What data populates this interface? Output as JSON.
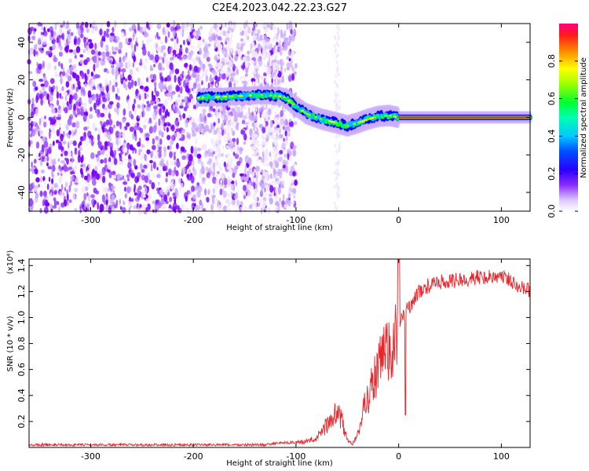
{
  "title": "C2E4.2023.042.22.23.G27",
  "colors": {
    "snr_line": "#e8262b",
    "colormap": [
      "#ffffff",
      "#f2e6ff",
      "#c9a9ff",
      "#9b4dff",
      "#7a00ff",
      "#3a00ff",
      "#0000ff",
      "#0060ff",
      "#00bfff",
      "#00ffd0",
      "#00ff40",
      "#90ff00",
      "#ffff00",
      "#ff9000",
      "#ff2020",
      "#ff0080"
    ]
  },
  "chart_data": [
    {
      "type": "heatmap",
      "name": "spectrogram",
      "xlabel": "Height of straight line (km)",
      "ylabel": "Frequency (Hz)",
      "xlim": [
        -360,
        128
      ],
      "ylim": [
        -50,
        50
      ],
      "x_ticks": [
        -300,
        -200,
        -100,
        0,
        100
      ],
      "x_tick_labels": [
        "-300",
        "-200",
        "-100",
        "0",
        "100"
      ],
      "y_ticks": [
        -40,
        -20,
        0,
        20,
        40
      ],
      "y_tick_labels": [
        "-40",
        "-20",
        "0",
        "20",
        "40"
      ],
      "ridge": {
        "height_km": [
          -195,
          -170,
          -150,
          -130,
          -112,
          -100,
          -90,
          -75,
          -60,
          -50,
          -40,
          -30,
          -20,
          -10,
          0,
          50,
          128
        ],
        "frequency_hz": [
          10.5,
          11,
          11.5,
          12,
          11,
          6,
          2,
          -1,
          -3,
          -4.5,
          -3,
          -1,
          0.5,
          1,
          0,
          0,
          0
        ]
      },
      "noise_region_km": [
        -360,
        -112
      ],
      "colorbar": {
        "label": "Normalized spectral amplitude",
        "range": [
          0,
          1
        ],
        "ticks": [
          0,
          0.2,
          0.4,
          0.6,
          0.8
        ],
        "tick_labels": [
          "0.0",
          "0.2",
          "0.4",
          "0.6",
          "0.8"
        ]
      }
    },
    {
      "type": "line",
      "name": "snr",
      "xlabel": "Height of straight line (km)",
      "ylabel": "SNR (10 * v/v)",
      "y_scale_note": "(x10⁴)",
      "xlim": [
        -360,
        128
      ],
      "ylim": [
        0,
        1.45
      ],
      "x_ticks": [
        -300,
        -200,
        -100,
        0,
        100
      ],
      "x_tick_labels": [
        "-300",
        "-200",
        "-100",
        "0",
        "100"
      ],
      "y_ticks": [
        0.2,
        0.4,
        0.6,
        0.8,
        1.0,
        1.2,
        1.4
      ],
      "y_tick_labels": [
        "0.2",
        "0.4",
        "0.6",
        "0.8",
        "1.0",
        "1.2",
        "1.4"
      ],
      "envelope": {
        "height_km": [
          -360,
          -130,
          -110,
          -90,
          -80,
          -72,
          -65,
          -60,
          -55,
          -50,
          -45,
          -40,
          -35,
          -30,
          -25,
          -20,
          -15,
          -10,
          -5,
          0,
          5,
          10,
          20,
          30,
          40,
          60,
          80,
          100,
          115,
          128
        ],
        "snr": [
          0.02,
          0.02,
          0.04,
          0.05,
          0.08,
          0.17,
          0.24,
          0.3,
          0.22,
          0.06,
          0.03,
          0.1,
          0.3,
          0.45,
          0.55,
          0.65,
          0.78,
          0.82,
          0.9,
          0.95,
          1.02,
          1.08,
          1.2,
          1.25,
          1.27,
          1.29,
          1.31,
          1.32,
          1.26,
          1.2
        ]
      }
    }
  ]
}
